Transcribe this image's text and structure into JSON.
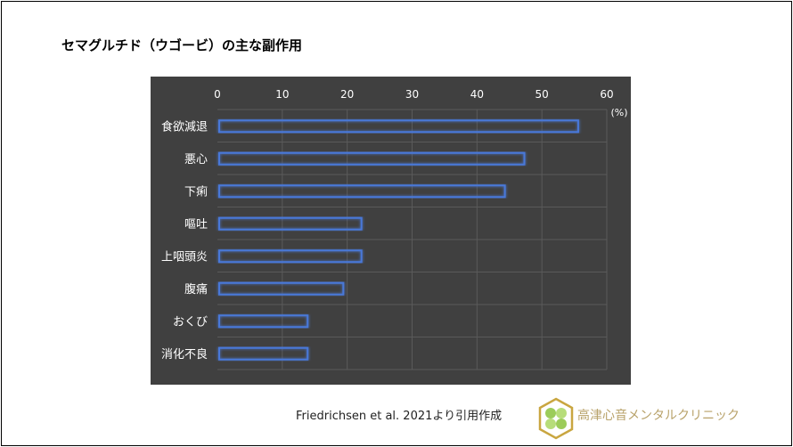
{
  "title": "セマグルチド（ウゴービ）の主な副作用",
  "citation": "Friedrichsen et al. 2021より引用作成",
  "logo_text": "高津心音メンタルクリニック",
  "chart_data": {
    "type": "bar",
    "orientation": "horizontal",
    "categories": [
      "食欲減退",
      "悪心",
      "下痢",
      "嘔吐",
      "上咽頭炎",
      "腹痛",
      "おくび",
      "消化不良"
    ],
    "values": [
      55.6,
      47.3,
      44.3,
      22.2,
      22.2,
      19.4,
      13.9,
      13.9
    ],
    "xlim": [
      0,
      60
    ],
    "xticks": [
      0,
      10,
      20,
      30,
      40,
      50,
      60
    ],
    "unit_label": "(%)",
    "grid": true,
    "colors": {
      "background": "#404040",
      "bar_outline": "#4a78d8",
      "grid": "#5a5a5a",
      "text": "#ffffff"
    }
  }
}
